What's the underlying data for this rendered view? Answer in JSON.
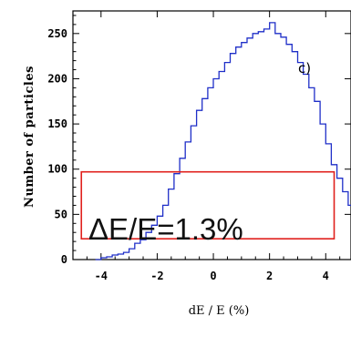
{
  "chart_data": {
    "type": "histogram",
    "xlabel": "dE / E (%)",
    "ylabel": "Number of particles",
    "panel_label": "c)",
    "annotation": "ΔE/E=1.3%",
    "xlim": [
      -5,
      4.9
    ],
    "ylim": [
      0,
      275
    ],
    "x_ticks": [
      -4,
      -2,
      0,
      2,
      4
    ],
    "y_ticks": [
      0,
      50,
      100,
      150,
      200,
      250
    ],
    "bin_width": 0.2,
    "bin_start": -4.2,
    "counts": [
      0,
      2,
      3,
      5,
      6,
      8,
      12,
      18,
      22,
      30,
      38,
      48,
      60,
      78,
      95,
      112,
      130,
      148,
      165,
      178,
      190,
      200,
      208,
      218,
      228,
      235,
      240,
      245,
      250,
      252,
      255,
      262,
      250,
      246,
      238,
      230,
      218,
      205,
      190,
      175,
      150,
      128,
      105,
      90,
      75,
      60,
      45,
      32,
      22,
      15,
      10,
      6,
      4,
      2,
      1,
      0
    ],
    "line_color": "#1f2fc8",
    "highlight_box": {
      "x_range": [
        -4.7,
        4.3
      ],
      "y_range": [
        23,
        97
      ],
      "color": "#e0201c"
    }
  }
}
